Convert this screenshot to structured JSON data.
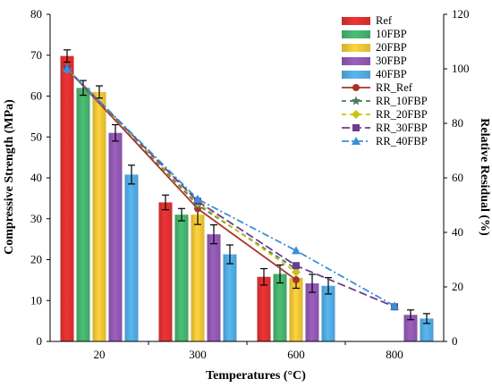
{
  "chart_data": {
    "type": "bar",
    "categories": [
      "20",
      "300",
      "600",
      "800"
    ],
    "xlabel": "Temperatures (°C)",
    "ylabel_left": "Compressive Strength (MPa)",
    "ylabel_right": "Relative Residual (%)",
    "ylim_left": [
      0,
      80
    ],
    "ylim_right": [
      0,
      120
    ],
    "yticks_left": [
      0,
      10,
      20,
      30,
      40,
      50,
      60,
      70,
      80
    ],
    "yticks_right": [
      0,
      20,
      40,
      60,
      80,
      100,
      120
    ],
    "grid": false,
    "legend_position": "top-right",
    "bar_series": [
      {
        "name": "Ref",
        "color": "#ee3434",
        "values": [
          69.8,
          34.0,
          15.8,
          null
        ],
        "errors": [
          1.5,
          1.8,
          2.0,
          null
        ]
      },
      {
        "name": "10FBP",
        "color": "#4cbf75",
        "values": [
          62.0,
          31.0,
          16.5,
          null
        ],
        "errors": [
          1.8,
          1.5,
          2.2,
          null
        ]
      },
      {
        "name": "20FBP",
        "color": "#ffd43b",
        "values": [
          61.0,
          31.0,
          15.5,
          null
        ],
        "errors": [
          1.5,
          2.4,
          2.5,
          null
        ]
      },
      {
        "name": "30FBP",
        "color": "#9c5fbf",
        "values": [
          51.0,
          26.2,
          14.2,
          6.5
        ],
        "errors": [
          2.0,
          2.3,
          2.2,
          1.2
        ]
      },
      {
        "name": "40FBP",
        "color": "#58b7f2",
        "values": [
          40.8,
          21.3,
          13.6,
          5.6
        ],
        "errors": [
          2.3,
          2.3,
          2.0,
          1.2
        ]
      }
    ],
    "line_series": [
      {
        "name": "RR_Ref",
        "color": "#a93226",
        "dash": "solid",
        "marker": "circle",
        "x": [
          "20",
          "300",
          "600"
        ],
        "values": [
          100,
          48.7,
          22.6
        ]
      },
      {
        "name": "RR_10FBP",
        "color": "#4a7a5a",
        "dash": "dash",
        "marker": "star",
        "x": [
          "20",
          "300",
          "600"
        ],
        "values": [
          100,
          50.0,
          26.6
        ]
      },
      {
        "name": "RR_20FBP",
        "color": "#c9c40f",
        "dash": "dash",
        "marker": "diamond",
        "x": [
          "20",
          "300",
          "600"
        ],
        "values": [
          100,
          50.8,
          25.4
        ]
      },
      {
        "name": "RR_30FBP",
        "color": "#6a3d8f",
        "dash": "longdash",
        "marker": "square",
        "x": [
          "20",
          "300",
          "600",
          "800"
        ],
        "values": [
          100,
          51.4,
          27.8,
          12.7
        ]
      },
      {
        "name": "RR_40FBP",
        "color": "#3a8fd6",
        "dash": "dashdot",
        "marker": "triangle",
        "x": [
          "20",
          "300",
          "600",
          "800"
        ],
        "values": [
          100,
          52.2,
          33.3,
          13.0
        ]
      }
    ]
  }
}
